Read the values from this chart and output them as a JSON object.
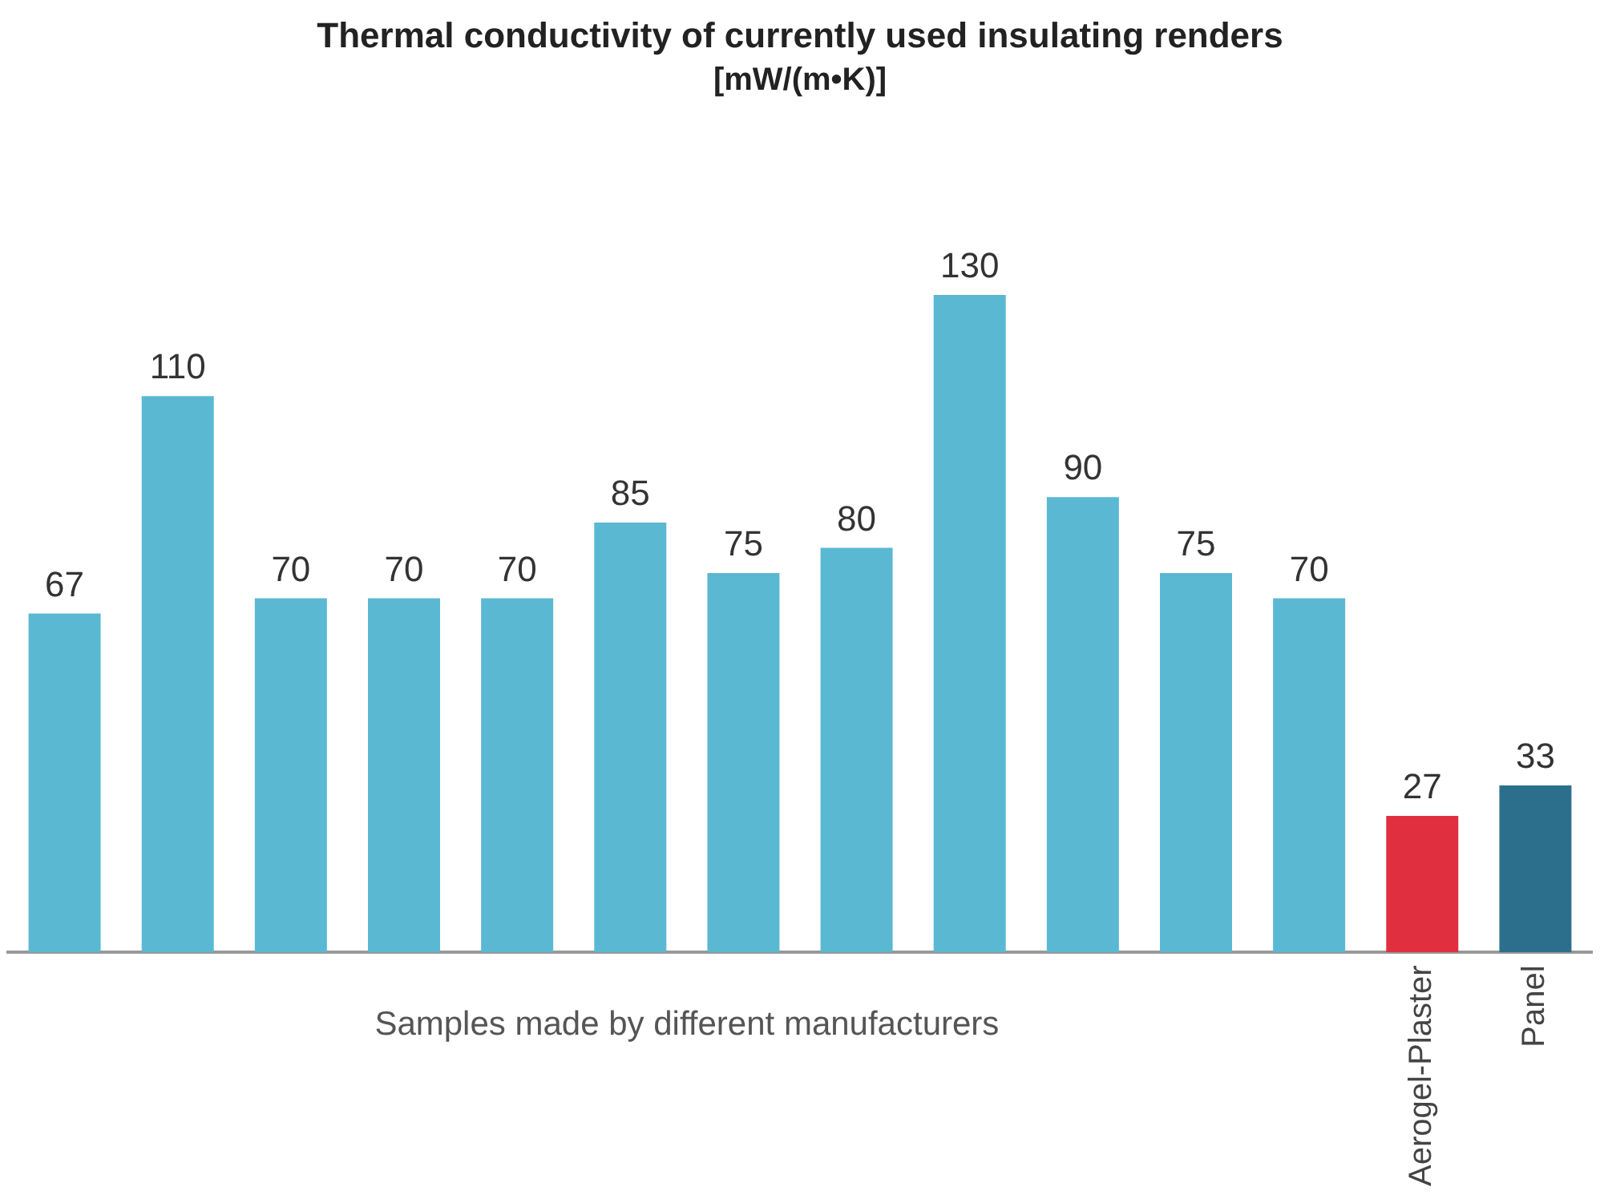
{
  "chart_data": {
    "type": "bar",
    "title": "Thermal conductivity of currently used insulating renders",
    "subtitle": "[mW/(m•K)]",
    "xlabel": "Samples made by different manufacturers",
    "categories": [
      null,
      null,
      null,
      null,
      null,
      null,
      null,
      null,
      null,
      null,
      null,
      null,
      "Aerogel-Plaster",
      "Panel"
    ],
    "values": [
      67,
      110,
      70,
      70,
      70,
      85,
      75,
      80,
      130,
      90,
      75,
      70,
      27,
      33
    ],
    "colors": [
      "#5ab8d2",
      "#5ab8d2",
      "#5ab8d2",
      "#5ab8d2",
      "#5ab8d2",
      "#5ab8d2",
      "#5ab8d2",
      "#5ab8d2",
      "#5ab8d2",
      "#5ab8d2",
      "#5ab8d2",
      "#5ab8d2",
      "#e0303f",
      "#2c6f8c"
    ],
    "data_labels": true,
    "grid": false,
    "legend": false
  }
}
